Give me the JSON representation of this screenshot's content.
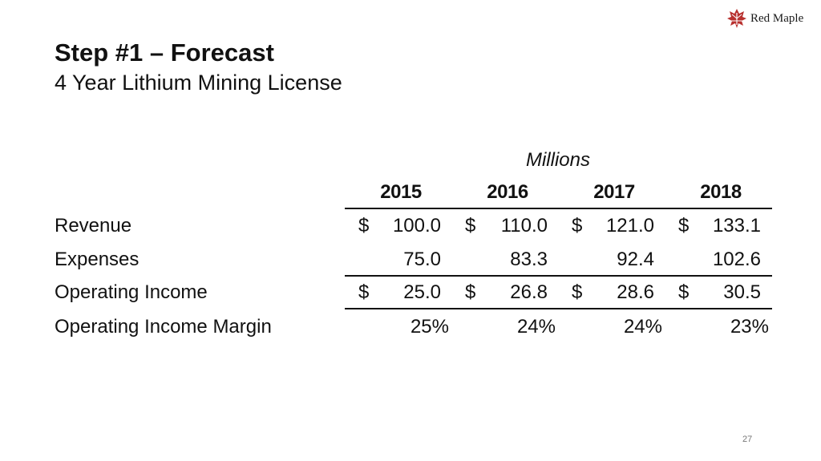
{
  "logo": {
    "text": "Red Maple",
    "icon": "maple-leaf-icon",
    "color": "#b8312f"
  },
  "slide": {
    "title": "Step #1 – Forecast",
    "subtitle": "4 Year Lithium Mining License",
    "page_number": "27"
  },
  "table": {
    "units": "Millions",
    "years": [
      "2015",
      "2016",
      "2017",
      "2018"
    ],
    "currency_symbol": "$",
    "rows": [
      {
        "label": "Revenue",
        "values": [
          "100.0",
          "110.0",
          "121.0",
          "133.1"
        ]
      },
      {
        "label": "Expenses",
        "values": [
          "75.0",
          "83.3",
          "92.4",
          "102.6"
        ]
      },
      {
        "label": "Operating Income",
        "values": [
          "25.0",
          "26.8",
          "28.6",
          "30.5"
        ]
      },
      {
        "label": "Operating Income Margin",
        "values": [
          "25%",
          "24%",
          "24%",
          "23%"
        ]
      }
    ]
  }
}
